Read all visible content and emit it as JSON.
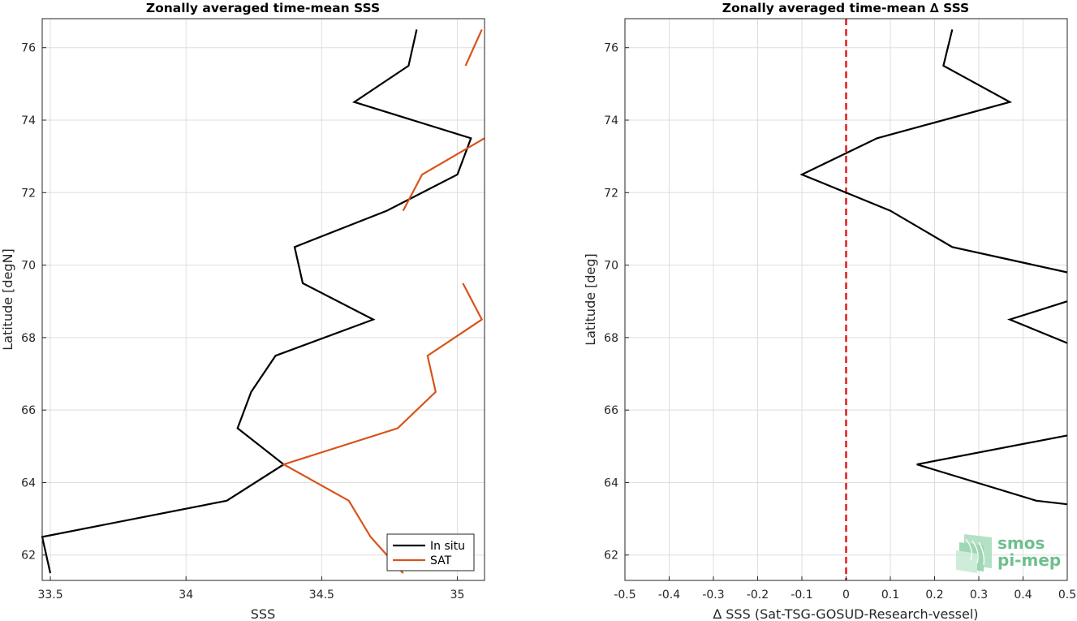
{
  "chart_data": [
    {
      "type": "line",
      "title": "Zonally averaged time-mean SSS",
      "xlabel": "SSS",
      "ylabel": "Latitude [degN]",
      "xlim": [
        33.47,
        35.1
      ],
      "ylim": [
        61.3,
        76.8
      ],
      "xticks": [
        33.5,
        34,
        34.5,
        35
      ],
      "xtick_labels": [
        "33.5",
        "34",
        "34.5",
        "35"
      ],
      "yticks": [
        62,
        64,
        66,
        68,
        70,
        72,
        74,
        76
      ],
      "ytick_labels": [
        "62",
        "64",
        "66",
        "68",
        "70",
        "72",
        "74",
        "76"
      ],
      "grid": true,
      "legend": "bottom-right",
      "series": [
        {
          "name": "In situ",
          "color": "#000000",
          "segments": [
            [
              [
                34.85,
                76.5
              ],
              [
                34.82,
                75.5
              ],
              [
                34.62,
                74.5
              ],
              [
                35.05,
                73.5
              ],
              [
                35.0,
                72.5
              ],
              [
                34.74,
                71.5
              ],
              [
                34.4,
                70.5
              ],
              [
                34.43,
                69.5
              ],
              [
                34.69,
                68.5
              ],
              [
                34.33,
                67.5
              ],
              [
                34.24,
                66.5
              ],
              [
                34.19,
                65.5
              ],
              [
                34.36,
                64.5
              ],
              [
                34.15,
                63.5
              ],
              [
                33.47,
                62.5
              ],
              [
                33.5,
                61.5
              ]
            ]
          ]
        },
        {
          "name": "SAT",
          "color": "#d95319",
          "segments": [
            [
              [
                35.09,
                76.5
              ],
              [
                35.03,
                75.5
              ]
            ],
            [
              [
                35.1,
                73.5
              ],
              [
                34.87,
                72.5
              ],
              [
                34.8,
                71.5
              ]
            ],
            [
              [
                35.02,
                69.5
              ],
              [
                35.09,
                68.5
              ],
              [
                34.89,
                67.5
              ],
              [
                34.92,
                66.5
              ],
              [
                34.78,
                65.5
              ],
              [
                34.36,
                64.5
              ],
              [
                34.6,
                63.5
              ],
              [
                34.68,
                62.5
              ],
              [
                34.8,
                61.5
              ]
            ]
          ]
        }
      ]
    },
    {
      "type": "line",
      "title": "Zonally averaged time-mean ∆ SSS",
      "xlabel": "∆ SSS (Sat-TSG-GOSUD-Research-vessel)",
      "ylabel": "Latitude [deg]",
      "xlim": [
        -0.5,
        0.5
      ],
      "ylim": [
        61.3,
        76.8
      ],
      "xticks": [
        -0.5,
        -0.4,
        -0.3,
        -0.2,
        -0.1,
        0,
        0.1,
        0.2,
        0.3,
        0.4,
        0.5
      ],
      "xtick_labels": [
        "-0.5",
        "-0.4",
        "-0.3",
        "-0.2",
        "-0.1",
        "0",
        "0.1",
        "0.2",
        "0.3",
        "0.4",
        "0.5"
      ],
      "yticks": [
        62,
        64,
        66,
        68,
        70,
        72,
        74,
        76
      ],
      "ytick_labels": [
        "62",
        "64",
        "66",
        "68",
        "70",
        "72",
        "74",
        "76"
      ],
      "grid": true,
      "reference_line": {
        "x": 0,
        "color": "#e31a1c",
        "style": "dashed"
      },
      "series": [
        {
          "name": "",
          "color": "#000000",
          "segments": [
            [
              [
                0.24,
                76.5
              ],
              [
                0.22,
                75.5
              ],
              [
                0.37,
                74.5
              ],
              [
                0.07,
                73.5
              ],
              [
                -0.1,
                72.5
              ],
              [
                0.1,
                71.5
              ],
              [
                0.24,
                70.5
              ],
              [
                0.5,
                69.8
              ]
            ],
            [
              [
                0.5,
                69.0
              ],
              [
                0.37,
                68.5
              ],
              [
                0.5,
                67.85
              ]
            ],
            [
              [
                0.5,
                65.3
              ],
              [
                0.16,
                64.5
              ],
              [
                0.43,
                63.5
              ],
              [
                0.5,
                63.4
              ]
            ]
          ]
        }
      ]
    }
  ],
  "logo": {
    "text_line1": "smos",
    "text_line2": "pi-mep",
    "color": "#6fbf8f"
  }
}
